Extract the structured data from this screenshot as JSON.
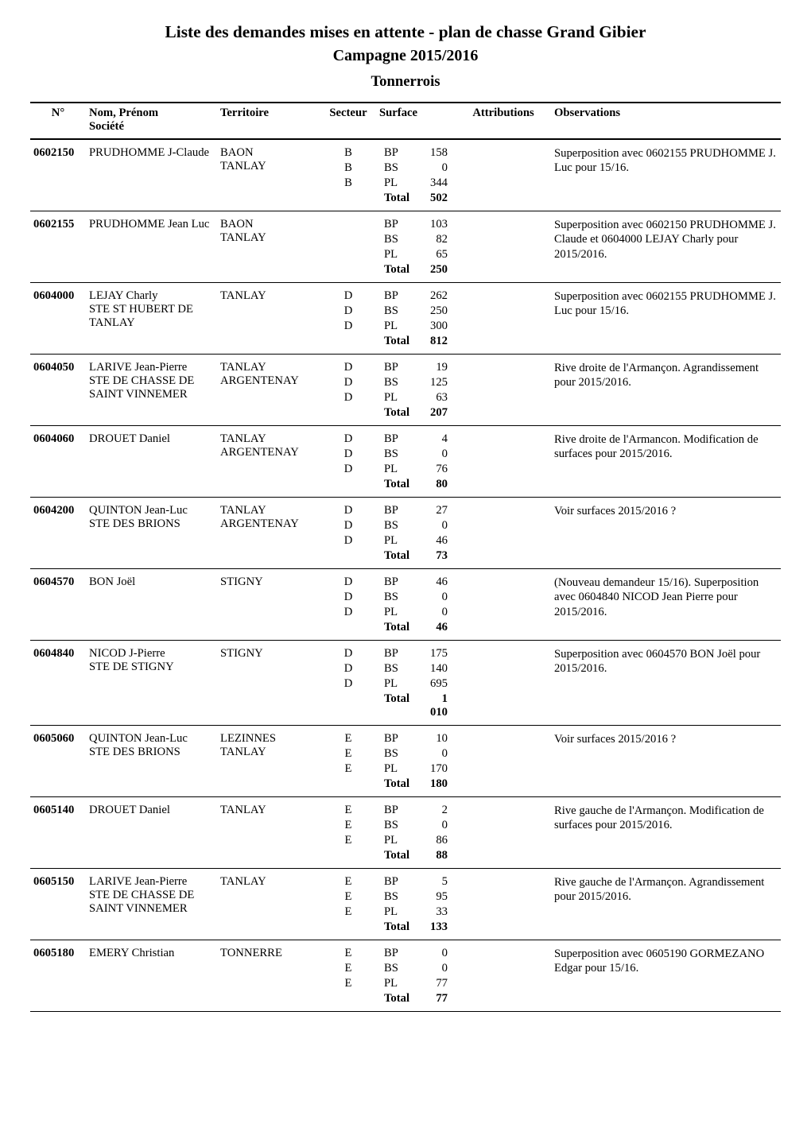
{
  "title": "Liste des demandes mises en attente - plan de chasse Grand Gibier",
  "subtitle": "Campagne 2015/2016",
  "section": "Tonnerrois",
  "fonts": {
    "title_pt": 16,
    "subtitle_pt": 15,
    "section_pt": 14,
    "header_pt": 11,
    "body_pt": 11
  },
  "headers": {
    "num": "N°",
    "nom": "Nom, Prénom",
    "nom_sub": "Société",
    "territoire": "Territoire",
    "secteur": "Secteur",
    "surface": "Surface",
    "attributions": "Attributions",
    "observations": "Observations"
  },
  "total_label": "Total",
  "entries": [
    {
      "num": "0602150",
      "nom_primary": "PRUDHOMME J-Claude",
      "nom_secondary": "",
      "territoires": [
        "BAON",
        "TANLAY"
      ],
      "secteurs": [
        "B",
        "B",
        "B"
      ],
      "surface": {
        "BP": 158,
        "BS": 0,
        "PL": 344,
        "Total": 502
      },
      "observations": "Superposition avec 0602155 PRUDHOMME J. Luc pour 15/16."
    },
    {
      "num": "0602155",
      "nom_primary": "PRUDHOMME Jean Luc",
      "nom_secondary": "",
      "territoires": [
        "BAON",
        "TANLAY"
      ],
      "secteurs": [
        "",
        "",
        ""
      ],
      "surface": {
        "BP": 103,
        "BS": 82,
        "PL": 65,
        "Total": 250
      },
      "observations": "Superposition avec 0602150 PRUDHOMME J. Claude et 0604000 LEJAY Charly pour 2015/2016."
    },
    {
      "num": "0604000",
      "nom_primary": "LEJAY Charly",
      "nom_secondary": "STE ST HUBERT DE TANLAY",
      "territoires": [
        "TANLAY"
      ],
      "secteurs": [
        "D",
        "D",
        "D"
      ],
      "surface": {
        "BP": 262,
        "BS": 250,
        "PL": 300,
        "Total": 812
      },
      "observations": "Superposition avec 0602155 PRUDHOMME J. Luc pour 15/16."
    },
    {
      "num": "0604050",
      "nom_primary": "LARIVE Jean-Pierre",
      "nom_secondary": "STE DE CHASSE DE SAINT VINNEMER",
      "territoires": [
        "TANLAY",
        "ARGENTENAY"
      ],
      "secteurs": [
        "D",
        "D",
        "D"
      ],
      "surface": {
        "BP": 19,
        "BS": 125,
        "PL": 63,
        "Total": 207
      },
      "observations": "Rive droite de l'Armançon. Agrandissement pour 2015/2016."
    },
    {
      "num": "0604060",
      "nom_primary": "DROUET Daniel",
      "nom_secondary": "",
      "territoires": [
        "TANLAY",
        "ARGENTENAY"
      ],
      "secteurs": [
        "D",
        "D",
        "D"
      ],
      "surface": {
        "BP": 4,
        "BS": 0,
        "PL": 76,
        "Total": 80
      },
      "observations": "Rive droite de l'Armancon. Modification de surfaces pour 2015/2016."
    },
    {
      "num": "0604200",
      "nom_primary": "QUINTON Jean-Luc",
      "nom_secondary": "STE DES BRIONS",
      "territoires": [
        "TANLAY",
        "ARGENTENAY"
      ],
      "secteurs": [
        "D",
        "D",
        "D"
      ],
      "surface": {
        "BP": 27,
        "BS": 0,
        "PL": 46,
        "Total": 73
      },
      "observations": "Voir surfaces 2015/2016 ?"
    },
    {
      "num": "0604570",
      "nom_primary": "BON Joël",
      "nom_secondary": "",
      "territoires": [
        "STIGNY"
      ],
      "secteurs": [
        "D",
        "D",
        "D"
      ],
      "surface": {
        "BP": 46,
        "BS": 0,
        "PL": 0,
        "Total": 46
      },
      "observations": "(Nouveau demandeur 15/16). Superposition avec 0604840 NICOD Jean Pierre pour 2015/2016."
    },
    {
      "num": "0604840",
      "nom_primary": "NICOD J-Pierre",
      "nom_secondary": "STE DE STIGNY",
      "territoires": [
        "STIGNY"
      ],
      "secteurs": [
        "D",
        "D",
        "D"
      ],
      "surface": {
        "BP": 175,
        "BS": 140,
        "PL": 695,
        "Total": "1 010"
      },
      "observations": "Superposition avec 0604570 BON Joël pour 2015/2016."
    },
    {
      "num": "0605060",
      "nom_primary": "QUINTON Jean-Luc",
      "nom_secondary": "STE DES BRIONS",
      "territoires": [
        "LEZINNES",
        "TANLAY"
      ],
      "secteurs": [
        "E",
        "E",
        "E"
      ],
      "surface": {
        "BP": 10,
        "BS": 0,
        "PL": 170,
        "Total": 180
      },
      "observations": "Voir surfaces 2015/2016 ?"
    },
    {
      "num": "0605140",
      "nom_primary": "DROUET Daniel",
      "nom_secondary": "",
      "territoires": [
        "TANLAY"
      ],
      "secteurs": [
        "E",
        "E",
        "E"
      ],
      "surface": {
        "BP": 2,
        "BS": 0,
        "PL": 86,
        "Total": 88
      },
      "observations": "Rive gauche de l'Armançon. Modification de surfaces pour 2015/2016."
    },
    {
      "num": "0605150",
      "nom_primary": "LARIVE Jean-Pierre",
      "nom_secondary": "STE DE CHASSE DE SAINT VINNEMER",
      "territoires": [
        "TANLAY"
      ],
      "secteurs": [
        "E",
        "E",
        "E"
      ],
      "surface": {
        "BP": 5,
        "BS": 95,
        "PL": 33,
        "Total": 133
      },
      "observations": "Rive gauche de l'Armançon. Agrandissement pour 2015/2016."
    },
    {
      "num": "0605180",
      "nom_primary": "EMERY Christian",
      "nom_secondary": "",
      "territoires": [
        "TONNERRE"
      ],
      "secteurs": [
        "E",
        "E",
        "E"
      ],
      "surface": {
        "BP": 0,
        "BS": 0,
        "PL": 77,
        "Total": 77
      },
      "observations": "Superposition avec 0605190 GORMEZANO Edgar pour 15/16."
    }
  ]
}
